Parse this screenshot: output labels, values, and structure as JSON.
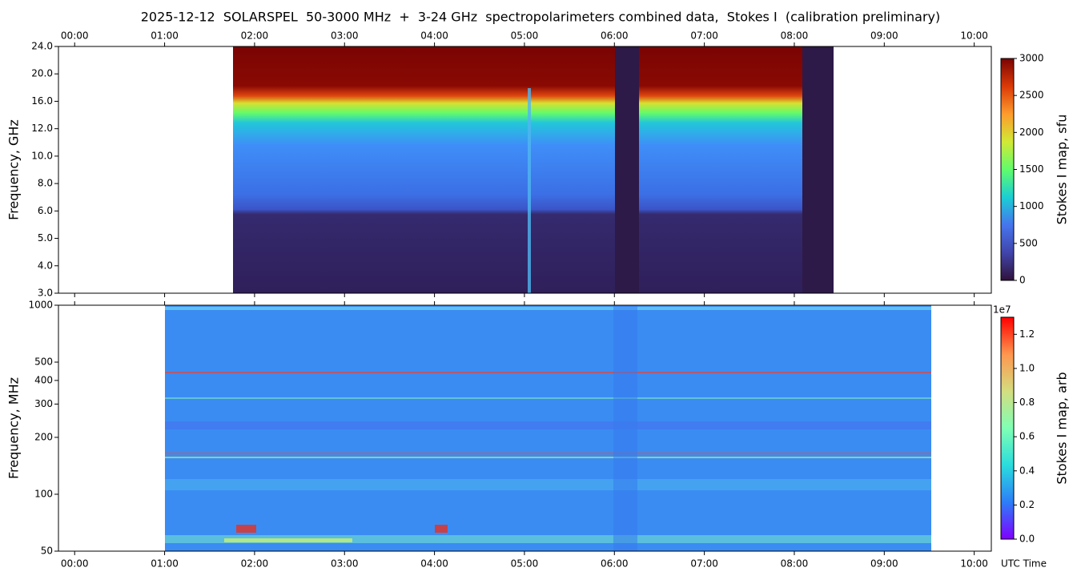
{
  "title": "2025-12-12  SOLARSPEL  50-3000 MHz  +  3-24 GHz  spectropolarimeters combined data,  Stokes I  (calibration preliminary)",
  "x_label": "UTC Time",
  "chart_data": [
    {
      "type": "heatmap",
      "ylabel": "Frequency, GHz",
      "xlim": [
        -0.18,
        10.19
      ],
      "xticks": [
        {
          "value": 0,
          "label": "00:00"
        },
        {
          "value": 1,
          "label": "01:00"
        },
        {
          "value": 2,
          "label": "02:00"
        },
        {
          "value": 3,
          "label": "03:00"
        },
        {
          "value": 4,
          "label": "04:00"
        },
        {
          "value": 5,
          "label": "05:00"
        },
        {
          "value": 6,
          "label": "06:00"
        },
        {
          "value": 7,
          "label": "07:00"
        },
        {
          "value": 8,
          "label": "08:00"
        },
        {
          "value": 9,
          "label": "09:00"
        },
        {
          "value": 10,
          "label": "10:00"
        }
      ],
      "ylim": [
        3,
        24
      ],
      "yscale": "piecewise",
      "yticks": [
        {
          "value": 3,
          "label": "3.0"
        },
        {
          "value": 4,
          "label": "4.0"
        },
        {
          "value": 5,
          "label": "5.0"
        },
        {
          "value": 6,
          "label": "6.0"
        },
        {
          "value": 8,
          "label": "8.0"
        },
        {
          "value": 10,
          "label": "10.0"
        },
        {
          "value": 12,
          "label": "12.0"
        },
        {
          "value": 16,
          "label": "16.0"
        },
        {
          "value": 20,
          "label": "20.0"
        },
        {
          "value": 24,
          "label": "24.0"
        }
      ],
      "colorbar": {
        "label": "Stokes I map, sfu",
        "lim": [
          0,
          3000
        ],
        "ticks": [
          0,
          500,
          1000,
          1500,
          2000,
          2500,
          3000
        ],
        "colors": [
          "#30123b",
          "#4145ab",
          "#4675ed",
          "#1bcfd4",
          "#61fc6c",
          "#d2e935",
          "#fe9b2d",
          "#db3a07",
          "#7a0403"
        ]
      }
    },
    {
      "type": "heatmap",
      "ylabel": "Frequency, MHz",
      "xlim": [
        -0.18,
        10.19
      ],
      "xticks": [
        {
          "value": 0,
          "label": "00:00"
        },
        {
          "value": 1,
          "label": "01:00"
        },
        {
          "value": 2,
          "label": "02:00"
        },
        {
          "value": 3,
          "label": "03:00"
        },
        {
          "value": 4,
          "label": "04:00"
        },
        {
          "value": 5,
          "label": "05:00"
        },
        {
          "value": 6,
          "label": "06:00"
        },
        {
          "value": 7,
          "label": "07:00"
        },
        {
          "value": 8,
          "label": "08:00"
        },
        {
          "value": 9,
          "label": "09:00"
        },
        {
          "value": 10,
          "label": "10:00"
        }
      ],
      "ylim": [
        50,
        1000
      ],
      "yscale": "log",
      "yticks": [
        50,
        100,
        200,
        300,
        400,
        500,
        1000
      ],
      "colorbar": {
        "label": "Stokes I map, arb",
        "lim": [
          0,
          1.3
        ],
        "offset": "1e7",
        "ticks": [
          {
            "value": 0,
            "label": "0.0"
          },
          {
            "value": 0.2,
            "label": "0.2"
          },
          {
            "value": 0.4,
            "label": "0.4"
          },
          {
            "value": 0.6,
            "label": "0.6"
          },
          {
            "value": 0.8,
            "label": "0.8"
          },
          {
            "value": 1.0,
            "label": "1.0"
          },
          {
            "value": 1.2,
            "label": "1.2"
          }
        ],
        "colors": [
          "#8000ff",
          "#2c7ef7",
          "#2adddd",
          "#80ffb4",
          "#d4dd80",
          "#ff964f",
          "#ff0000"
        ]
      }
    }
  ]
}
